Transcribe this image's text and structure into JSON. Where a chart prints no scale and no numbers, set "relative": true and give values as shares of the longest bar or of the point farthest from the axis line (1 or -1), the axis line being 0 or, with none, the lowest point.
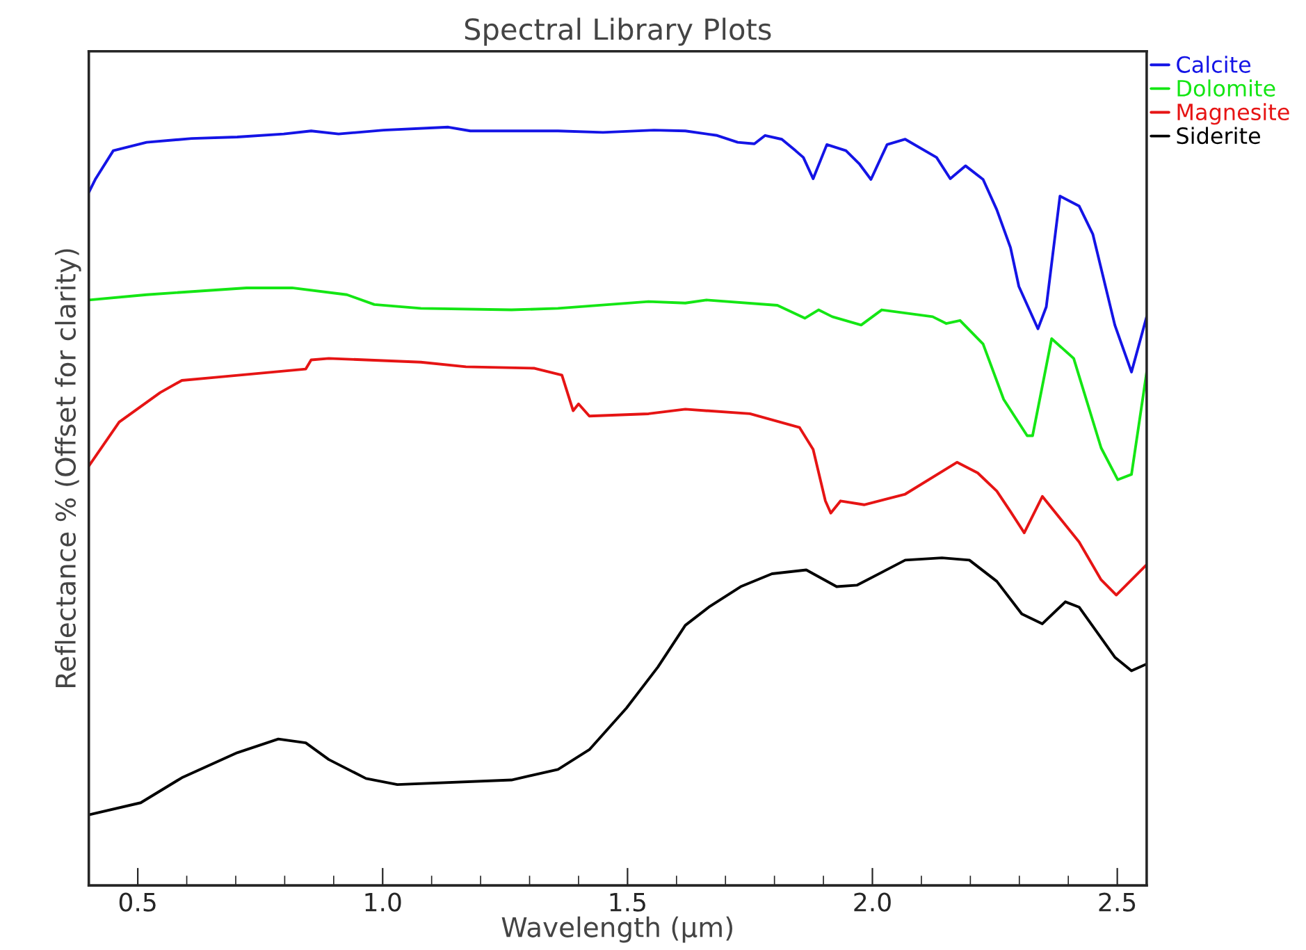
{
  "chart_data": {
    "type": "line",
    "title": "Spectral Library Plots",
    "xlabel": "Wavelength (μm)",
    "ylabel": "Reflectance % (Offset for clarity)",
    "relative": true,
    "xlim": [
      0.4,
      2.56
    ],
    "xticks": [
      {
        "value": 0.5,
        "label": "0.5"
      },
      {
        "value": 1,
        "label": "1.0"
      },
      {
        "value": 1.5,
        "label": "1.5"
      },
      {
        "value": 2,
        "label": "2.0"
      },
      {
        "value": 2.5,
        "label": "2.5"
      }
    ],
    "grid": false,
    "legend": "top right",
    "marker": "none",
    "line_style": "solid",
    "series": [
      {
        "name": "Calcite",
        "color": "#1414e6",
        "x": [
          0.4,
          0.414,
          0.45,
          0.518,
          0.61,
          0.703,
          0.798,
          0.854,
          0.91,
          1.002,
          1.134,
          1.179,
          1.358,
          1.45,
          1.554,
          1.618,
          1.683,
          1.725,
          1.759,
          1.781,
          1.815,
          1.843,
          1.859,
          1.879,
          1.907,
          1.946,
          1.974,
          1.997,
          2.03,
          2.067,
          2.131,
          2.159,
          2.19,
          2.226,
          2.254,
          2.282,
          2.299,
          2.338,
          2.355,
          2.383,
          2.422,
          2.45,
          2.495,
          2.529,
          2.56
        ],
        "values": [
          0.914,
          0.932,
          0.969,
          0.98,
          0.985,
          0.987,
          0.991,
          0.995,
          0.991,
          0.996,
          1.0,
          0.995,
          0.995,
          0.993,
          0.996,
          0.995,
          0.989,
          0.98,
          0.978,
          0.989,
          0.984,
          0.969,
          0.96,
          0.932,
          0.977,
          0.969,
          0.951,
          0.931,
          0.977,
          0.984,
          0.96,
          0.932,
          0.949,
          0.931,
          0.891,
          0.841,
          0.79,
          0.734,
          0.763,
          0.909,
          0.896,
          0.859,
          0.739,
          0.677,
          0.75
        ]
      },
      {
        "name": "Dolomite",
        "color": "#14e614",
        "x": [
          0.4,
          0.518,
          0.722,
          0.815,
          0.927,
          0.983,
          1.078,
          1.263,
          1.358,
          1.543,
          1.618,
          1.661,
          1.806,
          1.862,
          1.89,
          1.918,
          1.977,
          2.019,
          2.123,
          2.151,
          2.179,
          2.226,
          2.268,
          2.316,
          2.327,
          2.366,
          2.411,
          2.467,
          2.501,
          2.529,
          2.56
        ],
        "values": [
          0.772,
          0.779,
          0.788,
          0.788,
          0.779,
          0.766,
          0.761,
          0.759,
          0.761,
          0.77,
          0.768,
          0.772,
          0.765,
          0.748,
          0.759,
          0.75,
          0.739,
          0.759,
          0.75,
          0.741,
          0.745,
          0.714,
          0.641,
          0.593,
          0.593,
          0.721,
          0.695,
          0.577,
          0.535,
          0.542,
          0.677
        ]
      },
      {
        "name": "Magnesite",
        "color": "#e61414",
        "x": [
          0.4,
          0.462,
          0.546,
          0.59,
          0.658,
          0.843,
          0.854,
          0.89,
          1.078,
          1.17,
          1.31,
          1.366,
          1.389,
          1.4,
          1.422,
          1.543,
          1.618,
          1.75,
          1.851,
          1.879,
          1.904,
          1.915,
          1.935,
          1.983,
          2.067,
          2.173,
          2.215,
          2.254,
          2.282,
          2.31,
          2.347,
          2.422,
          2.467,
          2.498,
          2.56
        ],
        "values": [
          0.553,
          0.611,
          0.65,
          0.666,
          0.67,
          0.681,
          0.693,
          0.695,
          0.69,
          0.684,
          0.682,
          0.673,
          0.626,
          0.635,
          0.619,
          0.622,
          0.628,
          0.622,
          0.604,
          0.575,
          0.507,
          0.491,
          0.507,
          0.502,
          0.516,
          0.558,
          0.544,
          0.52,
          0.493,
          0.465,
          0.513,
          0.453,
          0.403,
          0.383,
          0.423
        ]
      },
      {
        "name": "Siderite",
        "color": "#000000",
        "x": [
          0.4,
          0.506,
          0.59,
          0.703,
          0.787,
          0.843,
          0.89,
          0.966,
          1.03,
          1.263,
          1.358,
          1.422,
          1.498,
          1.562,
          1.618,
          1.666,
          1.731,
          1.795,
          1.865,
          1.927,
          1.969,
          2.067,
          2.142,
          2.198,
          2.254,
          2.305,
          2.347,
          2.394,
          2.422,
          2.495,
          2.529,
          2.56
        ],
        "values": [
          0.093,
          0.109,
          0.142,
          0.175,
          0.193,
          0.188,
          0.166,
          0.141,
          0.133,
          0.139,
          0.153,
          0.179,
          0.234,
          0.288,
          0.343,
          0.367,
          0.394,
          0.411,
          0.416,
          0.394,
          0.396,
          0.429,
          0.432,
          0.429,
          0.401,
          0.358,
          0.345,
          0.374,
          0.367,
          0.301,
          0.283,
          0.292
        ]
      }
    ]
  }
}
